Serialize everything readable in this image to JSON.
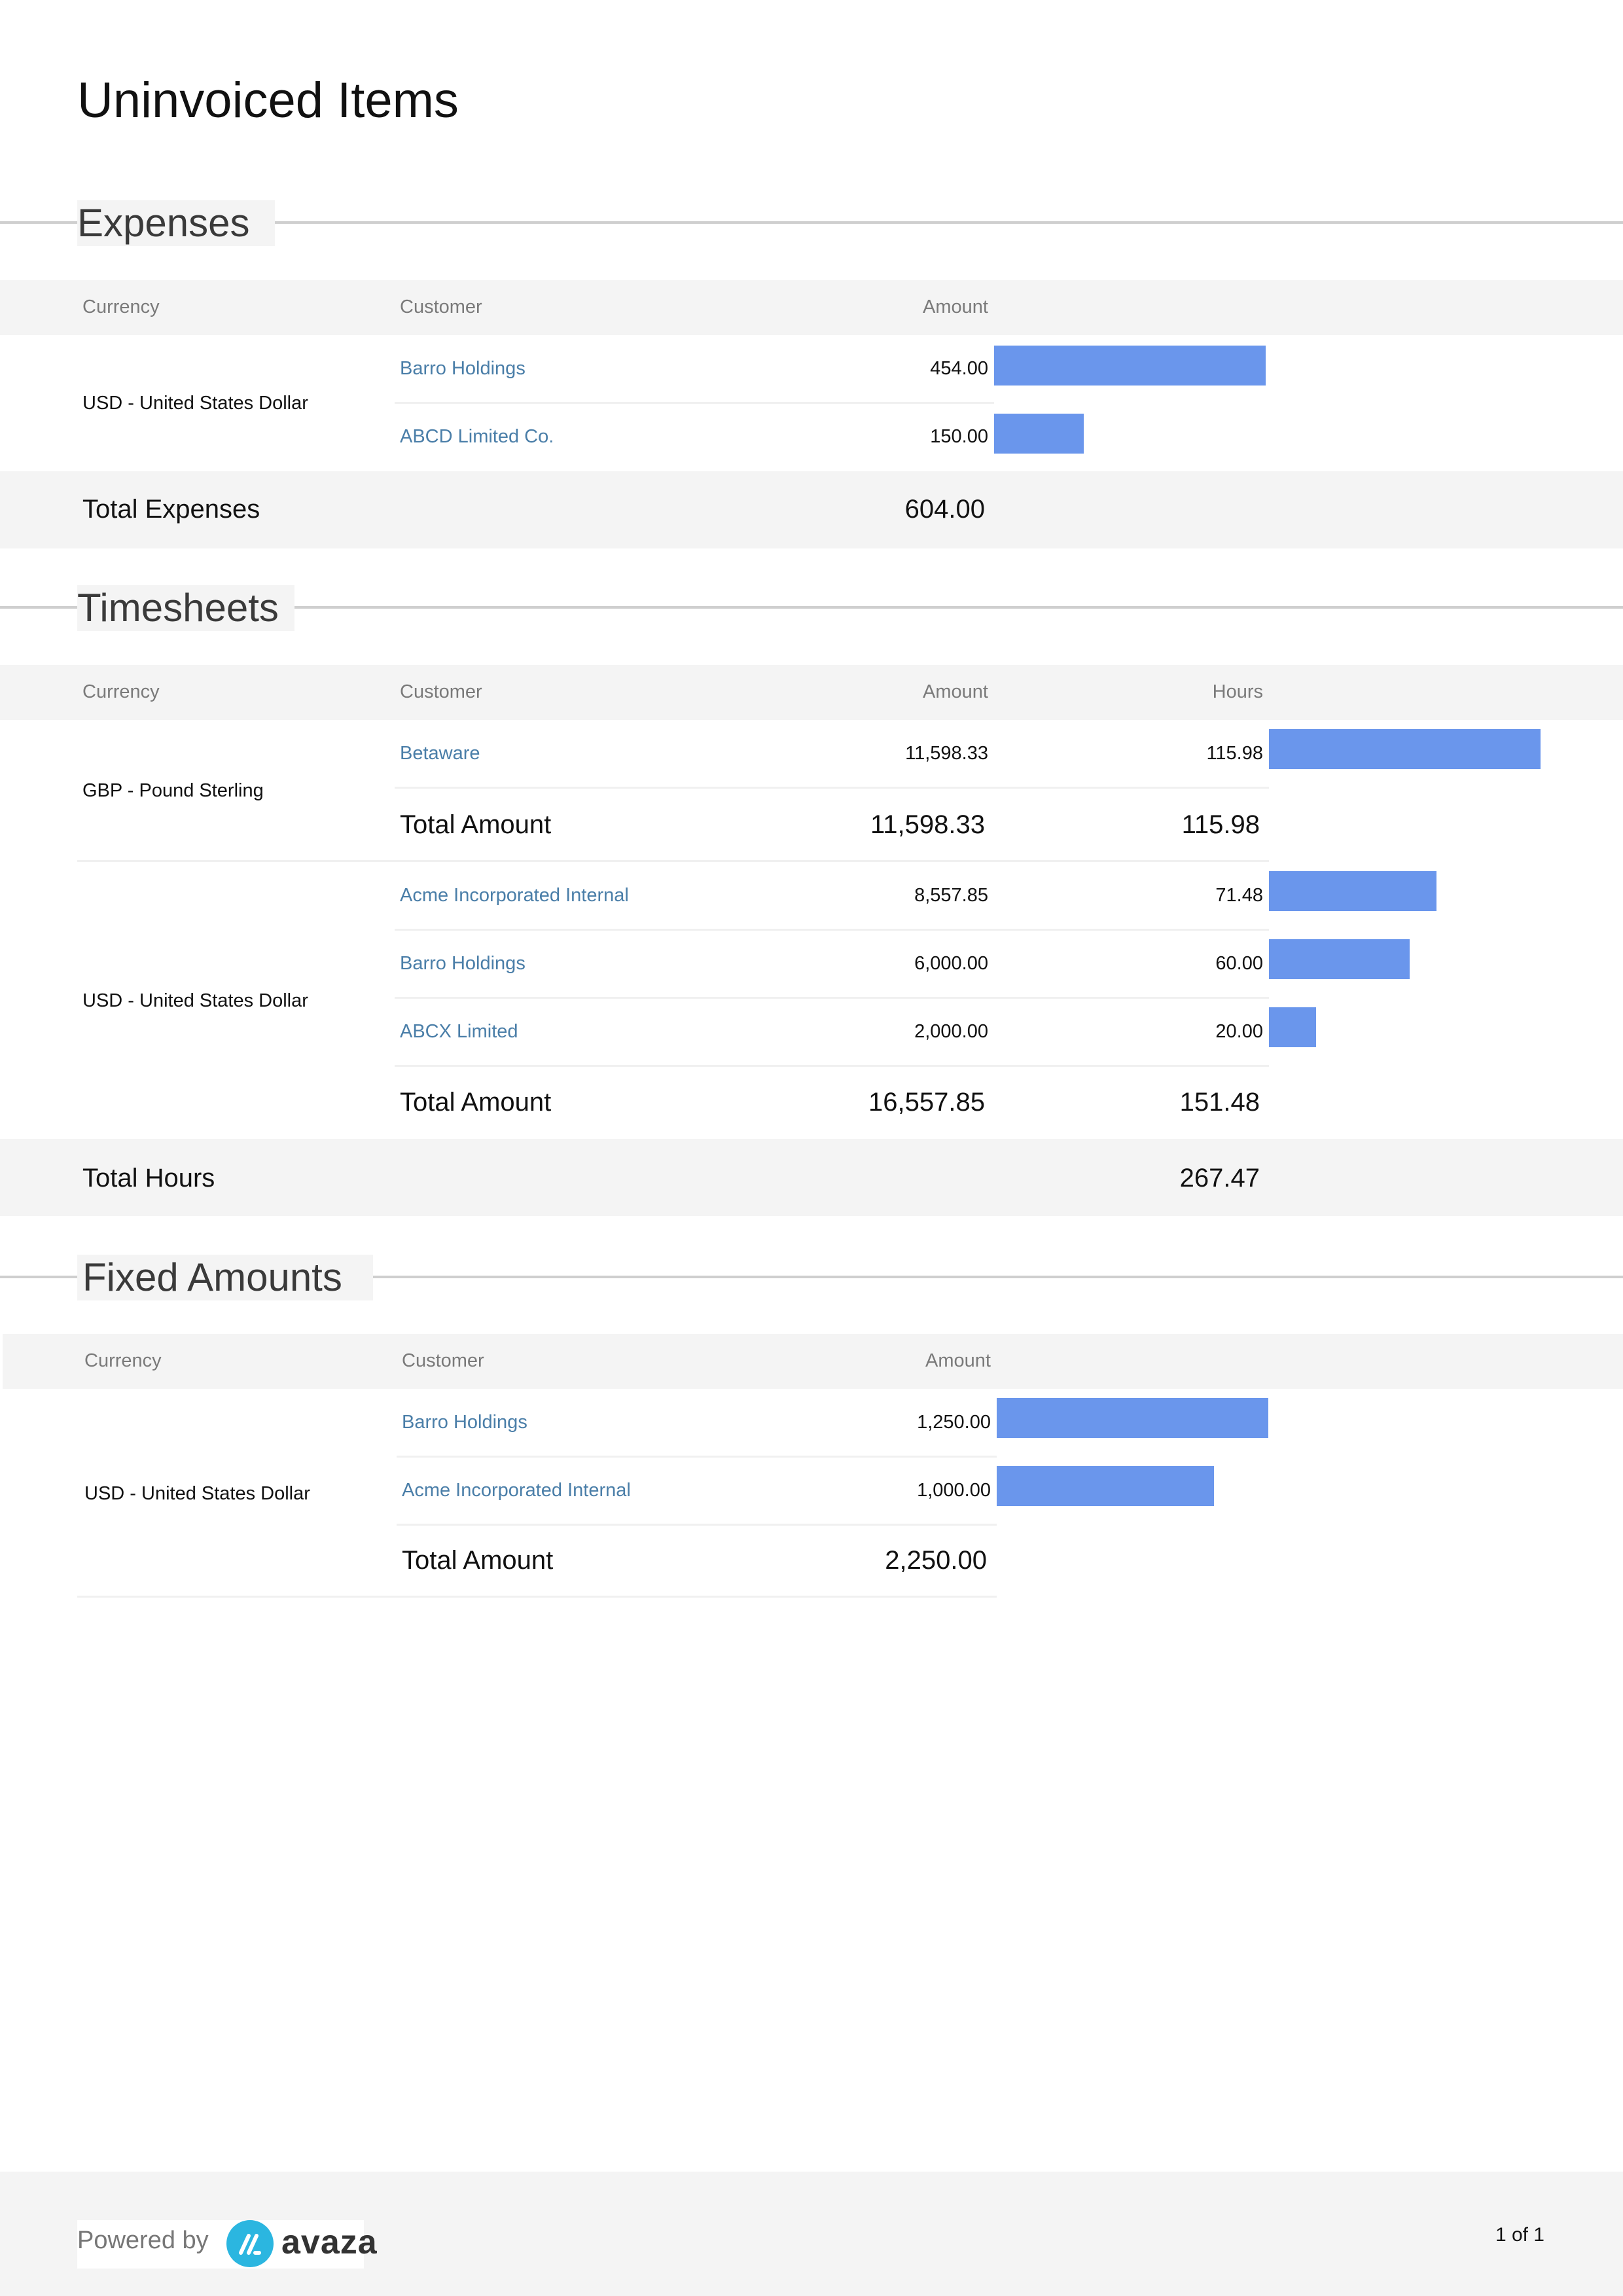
{
  "title": "Uninvoiced Items",
  "expenses": {
    "title": "Expenses",
    "headers": {
      "currency": "Currency",
      "customer": "Customer",
      "amount": "Amount"
    },
    "groups": [
      {
        "currency": "USD - United States Dollar",
        "rows": [
          {
            "customer": "Barro Holdings",
            "amount": "454.00",
            "value": 454
          },
          {
            "customer": "ABCD Limited Co.",
            "amount": "150.00",
            "value": 150
          }
        ]
      }
    ],
    "total_label": "Total Expenses",
    "total_amount": "604.00"
  },
  "timesheets": {
    "title": "Timesheets",
    "headers": {
      "currency": "Currency",
      "customer": "Customer",
      "amount": "Amount",
      "hours": "Hours"
    },
    "groups": [
      {
        "currency": "GBP - Pound Sterling",
        "rows": [
          {
            "customer": "Betaware",
            "amount": "11,598.33",
            "hours": "115.98",
            "value": 115.98
          }
        ],
        "total_label": "Total Amount",
        "total_amount": "11,598.33",
        "total_hours": "115.98"
      },
      {
        "currency": "USD - United States Dollar",
        "rows": [
          {
            "customer": "Acme Incorporated Internal",
            "amount": "8,557.85",
            "hours": "71.48",
            "value": 71.48
          },
          {
            "customer": "Barro Holdings",
            "amount": "6,000.00",
            "hours": "60.00",
            "value": 60.0
          },
          {
            "customer": "ABCX Limited",
            "amount": "2,000.00",
            "hours": "20.00",
            "value": 20.0
          }
        ],
        "total_label": "Total Amount",
        "total_amount": "16,557.85",
        "total_hours": "151.48"
      }
    ],
    "total_label": "Total Hours",
    "total_hours": "267.47"
  },
  "fixed": {
    "title": "Fixed Amounts",
    "headers": {
      "currency": "Currency",
      "customer": "Customer",
      "amount": "Amount"
    },
    "groups": [
      {
        "currency": "USD - United States Dollar",
        "rows": [
          {
            "customer": "Barro Holdings",
            "amount": "1,250.00",
            "value": 1250
          },
          {
            "customer": "Acme Incorporated Internal",
            "amount": "1,000.00",
            "value": 1000
          }
        ],
        "total_label": "Total Amount",
        "total_amount": "2,250.00"
      }
    ]
  },
  "footer": {
    "powered_by": "Powered by",
    "brand": "avaza",
    "page": "1 of 1"
  },
  "colors": {
    "bar": "#6a96ec",
    "link": "#4a7ea8",
    "band": "#f4f4f4"
  }
}
